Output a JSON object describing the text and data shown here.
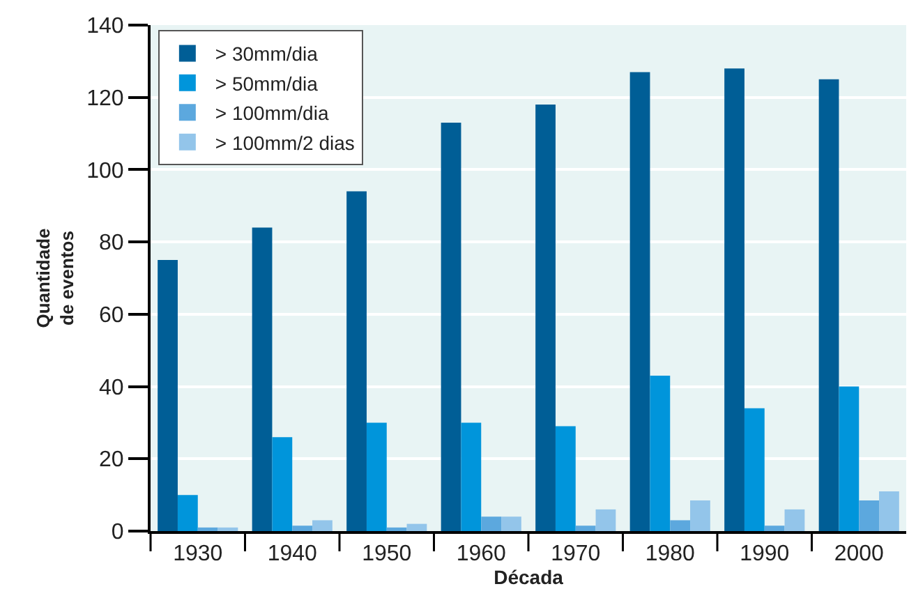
{
  "chart_data": {
    "type": "bar",
    "xlabel": "Década",
    "ylabel": "Quantidade\nde eventos",
    "categories": [
      "1930",
      "1940",
      "1950",
      "1960",
      "1970",
      "1980",
      "1990",
      "2000"
    ],
    "series": [
      {
        "name": "> 30mm/dia",
        "color": "#005e96",
        "values": [
          75,
          84,
          94,
          113,
          118,
          127,
          128,
          125
        ]
      },
      {
        "name": "> 50mm/dia",
        "color": "#0095db",
        "values": [
          10,
          26,
          30,
          30,
          29,
          43,
          34,
          40
        ]
      },
      {
        "name": "> 100mm/dia",
        "color": "#5ca8de",
        "values": [
          1,
          1.5,
          1,
          4,
          1.5,
          3,
          1.5,
          8.5
        ]
      },
      {
        "name": "> 100mm/2 dias",
        "color": "#93c5ea",
        "values": [
          1,
          3,
          2,
          4,
          6,
          8.5,
          6,
          11
        ]
      }
    ],
    "ylim": [
      0,
      140
    ],
    "yticks": [
      0,
      20,
      40,
      60,
      80,
      100,
      120,
      140
    ],
    "grid": "y",
    "legend": "top left"
  }
}
